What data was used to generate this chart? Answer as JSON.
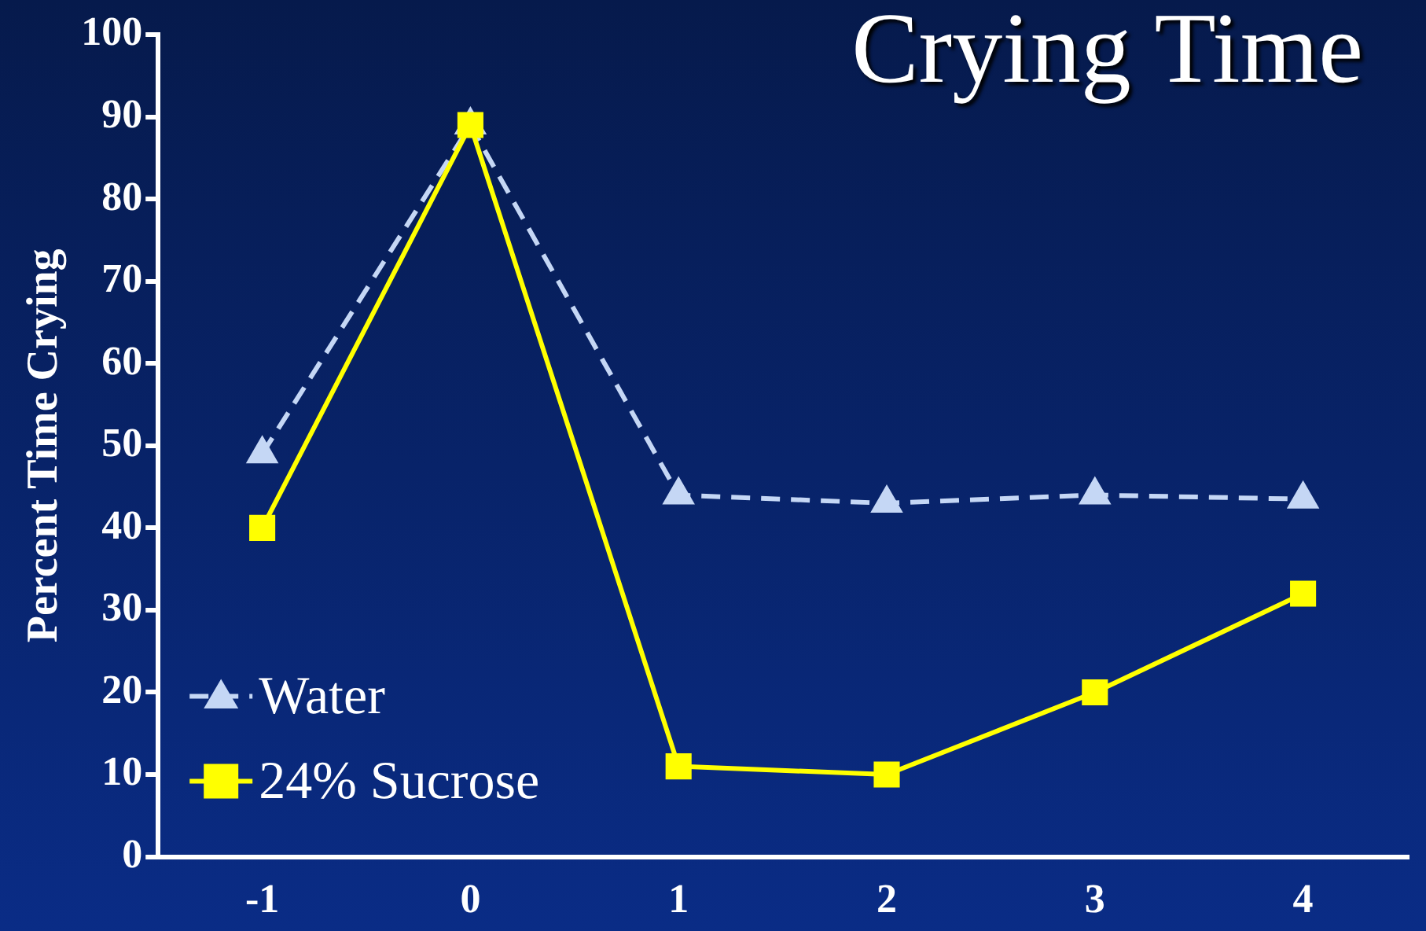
{
  "chart_data": {
    "type": "line",
    "title": "Crying Time",
    "ylabel": "Percent Time Crying",
    "categories": [
      "-1",
      "0",
      "1",
      "2",
      "3",
      "4"
    ],
    "series": [
      {
        "name": "Water",
        "color": "#c5d7f5",
        "values": [
          49,
          89,
          44,
          43,
          44,
          43.5
        ],
        "marker": "triangle",
        "line_style": "dashed"
      },
      {
        "name": "24% Sucrose",
        "color": "#ffff00",
        "values": [
          40,
          89,
          11,
          10,
          20,
          32
        ],
        "marker": "square",
        "line_style": "solid"
      }
    ],
    "ylim": [
      0,
      100
    ],
    "yticks": [
      0,
      10,
      20,
      30,
      40,
      50,
      60,
      70,
      80,
      90,
      100
    ],
    "grid": false,
    "legend": "bottom left"
  }
}
